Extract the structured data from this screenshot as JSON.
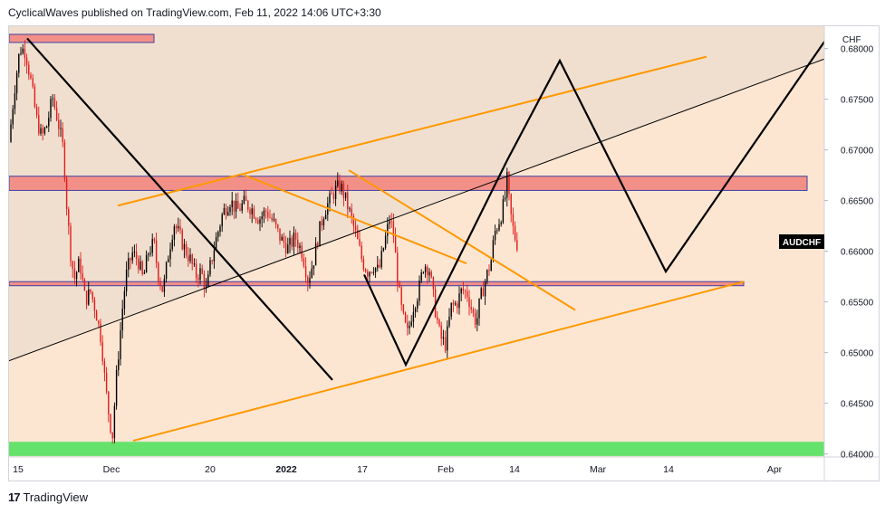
{
  "header": {
    "publisher_line": "CyclicalWaves published on TradingView.com, Feb 11, 2022 14:06 UTC+3:30"
  },
  "footer": {
    "brand": "TradingView",
    "logo_glyph": "17"
  },
  "chart_data": {
    "type": "candlestick",
    "symbol": "AUDCHF",
    "currency": "CHF",
    "ylim": [
      0.6397,
      0.6822
    ],
    "y_ticks": [
      "0.68000",
      "0.67500",
      "0.67000",
      "0.66500",
      "0.66000",
      "0.65500",
      "0.65000",
      "0.64500",
      "0.64000"
    ],
    "x_tick_labels": [
      "15",
      "Dec",
      "20",
      "2022",
      "17",
      "Feb",
      "14",
      "Mar",
      "14",
      "Apr"
    ],
    "last_price_label": "AUDCHF",
    "colors": {
      "up": "#000000",
      "down": "#e21b1b",
      "zone_red": "#f29087",
      "zone_green": "#65e26b",
      "orange_line": "#ff9800",
      "black_line": "#000000",
      "background_shaded": "#f0dfcf",
      "background_lower": "#fce6d2"
    },
    "price_path": [
      [
        0,
        0.6708
      ],
      [
        6,
        0.676
      ],
      [
        12,
        0.68
      ],
      [
        18,
        0.6798
      ],
      [
        24,
        0.6768
      ],
      [
        30,
        0.6732
      ],
      [
        36,
        0.6712
      ],
      [
        42,
        0.6725
      ],
      [
        48,
        0.6752
      ],
      [
        54,
        0.6728
      ],
      [
        60,
        0.67
      ],
      [
        64,
        0.664
      ],
      [
        68,
        0.6598
      ],
      [
        72,
        0.6572
      ],
      [
        78,
        0.659
      ],
      [
        84,
        0.6552
      ],
      [
        90,
        0.656
      ],
      [
        96,
        0.654
      ],
      [
        102,
        0.6512
      ],
      [
        106,
        0.647
      ],
      [
        110,
        0.644
      ],
      [
        114,
        0.6416
      ],
      [
        118,
        0.647
      ],
      [
        122,
        0.6512
      ],
      [
        126,
        0.6552
      ],
      [
        130,
        0.658
      ],
      [
        136,
        0.6598
      ],
      [
        142,
        0.6592
      ],
      [
        148,
        0.6572
      ],
      [
        154,
        0.66
      ],
      [
        160,
        0.6608
      ],
      [
        164,
        0.658
      ],
      [
        170,
        0.656
      ],
      [
        176,
        0.6598
      ],
      [
        182,
        0.6628
      ],
      [
        188,
        0.6616
      ],
      [
        194,
        0.6602
      ],
      [
        200,
        0.6592
      ],
      [
        206,
        0.6576
      ],
      [
        212,
        0.658
      ],
      [
        218,
        0.656
      ],
      [
        222,
        0.6585
      ],
      [
        228,
        0.661
      ],
      [
        236,
        0.6638
      ],
      [
        244,
        0.665
      ],
      [
        252,
        0.664
      ],
      [
        260,
        0.6648
      ],
      [
        268,
        0.6642
      ],
      [
        276,
        0.6632
      ],
      [
        284,
        0.664
      ],
      [
        292,
        0.6628
      ],
      [
        300,
        0.6612
      ],
      [
        308,
        0.6603
      ],
      [
        316,
        0.6614
      ],
      [
        324,
        0.6598
      ],
      [
        330,
        0.6572
      ],
      [
        336,
        0.659
      ],
      [
        342,
        0.6618
      ],
      [
        348,
        0.664
      ],
      [
        354,
        0.665
      ],
      [
        360,
        0.666
      ],
      [
        366,
        0.6665
      ],
      [
        372,
        0.665
      ],
      [
        378,
        0.6632
      ],
      [
        384,
        0.6612
      ],
      [
        390,
        0.659
      ],
      [
        396,
        0.658
      ],
      [
        402,
        0.6586
      ],
      [
        408,
        0.658
      ],
      [
        414,
        0.6606
      ],
      [
        420,
        0.6632
      ],
      [
        424,
        0.662
      ],
      [
        428,
        0.6582
      ],
      [
        432,
        0.6548
      ],
      [
        436,
        0.653
      ],
      [
        440,
        0.6518
      ],
      [
        446,
        0.6545
      ],
      [
        452,
        0.656
      ],
      [
        458,
        0.6588
      ],
      [
        464,
        0.6582
      ],
      [
        470,
        0.6545
      ],
      [
        476,
        0.6515
      ],
      [
        482,
        0.6508
      ],
      [
        488,
        0.6545
      ],
      [
        494,
        0.6548
      ],
      [
        500,
        0.6562
      ],
      [
        506,
        0.6558
      ],
      [
        512,
        0.6538
      ],
      [
        516,
        0.653
      ],
      [
        520,
        0.6552
      ],
      [
        526,
        0.6572
      ],
      [
        532,
        0.659
      ],
      [
        536,
        0.6618
      ],
      [
        540,
        0.6628
      ],
      [
        544,
        0.6638
      ],
      [
        548,
        0.6655
      ],
      [
        550,
        0.6672
      ],
      [
        552,
        0.665
      ],
      [
        555,
        0.6628
      ],
      [
        558,
        0.6615
      ],
      [
        561,
        0.6607
      ]
    ],
    "zones": [
      {
        "name": "top-resistance-zone",
        "y_from": 0.6806,
        "y_to": 0.6814,
        "x_from": 0,
        "x_to": 160,
        "color": "zone_red"
      },
      {
        "name": "upper-resistance-zone",
        "y_from": 0.666,
        "y_to": 0.6674,
        "x_from": 0,
        "x_to": 881,
        "color": "zone_red"
      },
      {
        "name": "middle-support-zone",
        "y_from": 0.6566,
        "y_to": 0.657,
        "x_from": 0,
        "x_to": 811,
        "color": "zone_red"
      },
      {
        "name": "bottom-support-zone",
        "y_from": 0.6398,
        "y_to": 0.6412,
        "x_from": 0,
        "x_to": 901,
        "color": "zone_green"
      }
    ],
    "lines": [
      {
        "name": "channel-top-orange",
        "color": "orange_line",
        "points": [
          [
            120,
            0.6645
          ],
          [
            770,
            0.6792
          ]
        ]
      },
      {
        "name": "channel-bottom-orange",
        "color": "orange_line",
        "points": [
          [
            137,
            0.6413
          ],
          [
            811,
            0.657
          ]
        ]
      },
      {
        "name": "wedge-upper-orange",
        "color": "orange_line",
        "points": [
          [
            375,
            0.668
          ],
          [
            625,
            0.6542
          ]
        ]
      },
      {
        "name": "wedge-lower-orange",
        "color": "orange_line",
        "points": [
          [
            260,
            0.6675
          ],
          [
            505,
            0.6588
          ]
        ]
      },
      {
        "name": "thin-trendline",
        "color": "black_line",
        "points": [
          [
            0,
            0.6492
          ],
          [
            901,
            0.679
          ]
        ]
      },
      {
        "name": "descending-trendline",
        "color": "black_line",
        "points": [
          [
            20,
            0.681
          ],
          [
            357,
            0.6473
          ]
        ]
      },
      {
        "name": "zigzag-projection",
        "color": "black_line",
        "points": [
          [
            392,
            0.6577
          ],
          [
            438,
            0.6488
          ],
          [
            550,
            0.669
          ],
          [
            608,
            0.6788
          ],
          [
            725,
            0.658
          ],
          [
            901,
            0.6808
          ]
        ]
      }
    ]
  }
}
